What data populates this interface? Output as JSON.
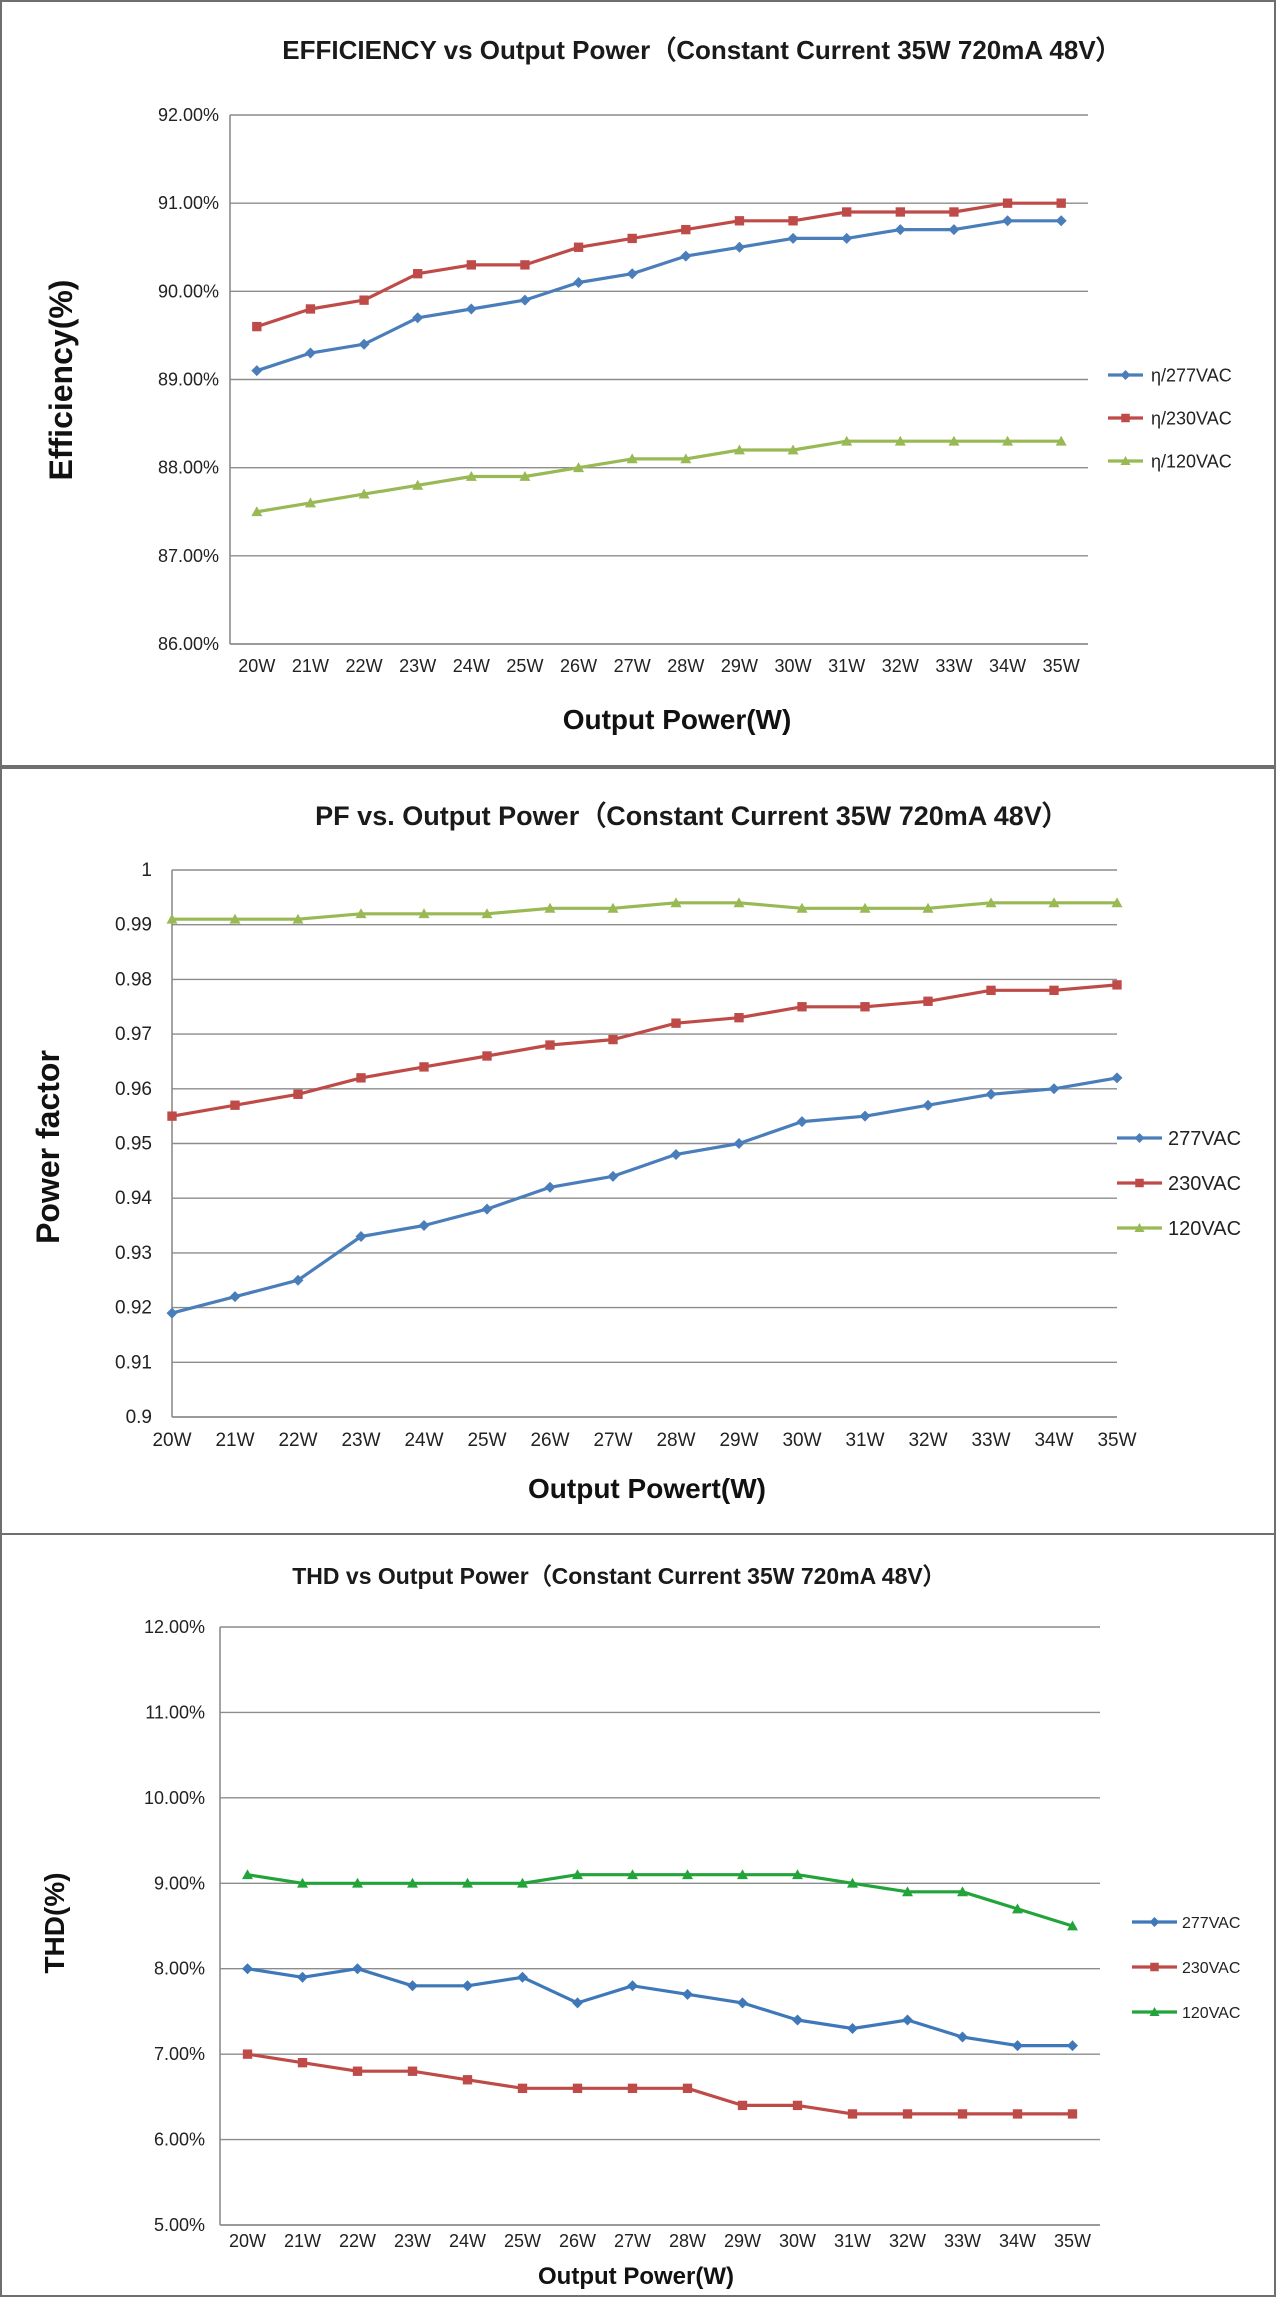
{
  "chart_data": [
    {
      "type": "line",
      "title": "EFFICIENCY vs Output Power（Constant Current 35W 720mA 48V）",
      "xlabel": "Output Power(W)",
      "ylabel": "Efficiency(%)",
      "categories": [
        "20W",
        "21W",
        "22W",
        "23W",
        "24W",
        "25W",
        "26W",
        "27W",
        "28W",
        "29W",
        "30W",
        "31W",
        "32W",
        "33W",
        "34W",
        "35W"
      ],
      "ylim": [
        86.0,
        92.0
      ],
      "yticks": [
        "86.00%",
        "87.00%",
        "88.00%",
        "89.00%",
        "90.00%",
        "91.00%",
        "92.00%"
      ],
      "grid": true,
      "legend_position": "right",
      "series": [
        {
          "name": "η/277VAC",
          "color": "#4a7ebb",
          "marker": "diamond",
          "values": [
            89.1,
            89.3,
            89.4,
            89.7,
            89.8,
            89.9,
            90.1,
            90.2,
            90.4,
            90.5,
            90.6,
            90.6,
            90.7,
            90.7,
            90.8,
            90.8
          ]
        },
        {
          "name": "η/230VAC",
          "color": "#be4b48",
          "marker": "square",
          "values": [
            89.6,
            89.8,
            89.9,
            90.2,
            90.3,
            90.3,
            90.5,
            90.6,
            90.7,
            90.8,
            90.8,
            90.9,
            90.9,
            90.9,
            91.0,
            91.0
          ]
        },
        {
          "name": "η/120VAC",
          "color": "#98b954",
          "marker": "triangle",
          "values": [
            87.5,
            87.6,
            87.7,
            87.8,
            87.9,
            87.9,
            88.0,
            88.1,
            88.1,
            88.2,
            88.2,
            88.3,
            88.3,
            88.3,
            88.3,
            88.3
          ]
        }
      ]
    },
    {
      "type": "line",
      "title": "PF vs. Output Power（Constant Current 35W 720mA 48V）",
      "xlabel": "Output Powert(W)",
      "ylabel": "Power factor",
      "categories": [
        "20W",
        "21W",
        "22W",
        "23W",
        "24W",
        "25W",
        "26W",
        "27W",
        "28W",
        "29W",
        "30W",
        "31W",
        "32W",
        "33W",
        "34W",
        "35W"
      ],
      "ylim": [
        0.9,
        1.0
      ],
      "yticks": [
        "0.9",
        "0.91",
        "0.92",
        "0.93",
        "0.94",
        "0.95",
        "0.96",
        "0.97",
        "0.98",
        "0.99",
        "1"
      ],
      "grid": true,
      "legend_position": "right",
      "series": [
        {
          "name": "277VAC",
          "color": "#4a7ebb",
          "marker": "diamond",
          "values": [
            0.919,
            0.922,
            0.925,
            0.933,
            0.935,
            0.938,
            0.942,
            0.944,
            0.948,
            0.95,
            0.954,
            0.955,
            0.957,
            0.959,
            0.96,
            0.962
          ]
        },
        {
          "name": "230VAC",
          "color": "#be4b48",
          "marker": "square",
          "values": [
            0.955,
            0.957,
            0.959,
            0.962,
            0.964,
            0.966,
            0.968,
            0.969,
            0.972,
            0.973,
            0.975,
            0.975,
            0.976,
            0.978,
            0.978,
            0.979
          ]
        },
        {
          "name": "120VAC",
          "color": "#98b954",
          "marker": "triangle",
          "values": [
            0.991,
            0.991,
            0.991,
            0.992,
            0.992,
            0.992,
            0.993,
            0.993,
            0.994,
            0.994,
            0.993,
            0.993,
            0.993,
            0.994,
            0.994,
            0.994
          ]
        }
      ]
    },
    {
      "type": "line",
      "title": "THD vs Output Power（Constant Current 35W  720mA 48V）",
      "xlabel": "Output Power(W)",
      "ylabel": "THD(%)",
      "categories": [
        "20W",
        "21W",
        "22W",
        "23W",
        "24W",
        "25W",
        "26W",
        "27W",
        "28W",
        "29W",
        "30W",
        "31W",
        "32W",
        "33W",
        "34W",
        "35W"
      ],
      "ylim": [
        5.0,
        12.0
      ],
      "yticks": [
        "5.00%",
        "6.00%",
        "7.00%",
        "8.00%",
        "9.00%",
        "10.00%",
        "11.00%",
        "12.00%"
      ],
      "grid": true,
      "legend_position": "right",
      "series": [
        {
          "name": "277VAC",
          "color": "#3f78b8",
          "marker": "diamond",
          "values": [
            8.0,
            7.9,
            8.0,
            7.8,
            7.8,
            7.9,
            7.6,
            7.8,
            7.7,
            7.6,
            7.4,
            7.3,
            7.4,
            7.2,
            7.1,
            7.1
          ]
        },
        {
          "name": "230VAC",
          "color": "#be4b48",
          "marker": "square",
          "values": [
            7.0,
            6.9,
            6.8,
            6.8,
            6.7,
            6.6,
            6.6,
            6.6,
            6.6,
            6.4,
            6.4,
            6.3,
            6.3,
            6.3,
            6.3,
            6.3
          ]
        },
        {
          "name": "120VAC",
          "color": "#22a43a",
          "marker": "triangle",
          "values": [
            9.1,
            9.0,
            9.0,
            9.0,
            9.0,
            9.0,
            9.1,
            9.1,
            9.1,
            9.1,
            9.1,
            9.0,
            8.9,
            8.9,
            8.7,
            8.5
          ]
        }
      ]
    }
  ]
}
